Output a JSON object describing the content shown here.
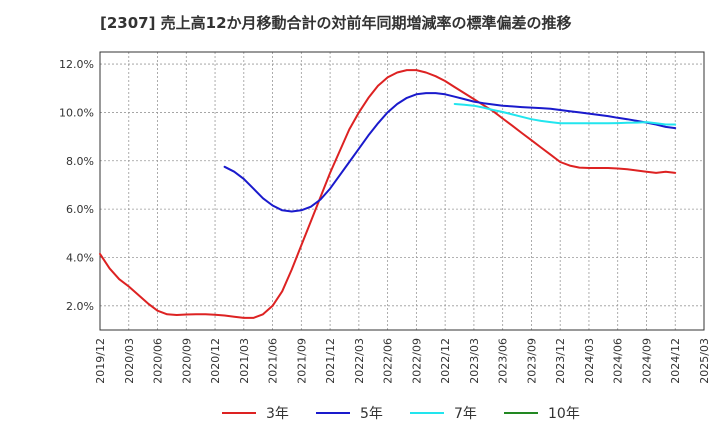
{
  "chart_data": {
    "type": "line",
    "title": "[2307]  売上高12か月移動合計の対前年同期増減率の標準偏差の推移",
    "xlabel": "",
    "ylabel": "",
    "x_ticks": [
      "2019/12",
      "2020/03",
      "2020/06",
      "2020/09",
      "2020/12",
      "2021/03",
      "2021/06",
      "2021/09",
      "2021/12",
      "2022/03",
      "2022/06",
      "2022/09",
      "2022/12",
      "2023/03",
      "2023/06",
      "2023/09",
      "2023/12",
      "2024/03",
      "2024/06",
      "2024/09",
      "2024/12",
      "2025/03"
    ],
    "y_ticks": [
      "2.0%",
      "4.0%",
      "6.0%",
      "8.0%",
      "10.0%",
      "12.0%"
    ],
    "ylim": [
      1.0,
      12.5
    ],
    "grid": true,
    "legend_position": "bottom",
    "series": [
      {
        "name": "3年",
        "color": "#dd2222",
        "x": [
          "2019/12",
          "2020/01",
          "2020/02",
          "2020/03",
          "2020/04",
          "2020/05",
          "2020/06",
          "2020/07",
          "2020/08",
          "2020/09",
          "2020/10",
          "2020/11",
          "2020/12",
          "2021/01",
          "2021/02",
          "2021/03",
          "2021/04",
          "2021/05",
          "2021/06",
          "2021/07",
          "2021/08",
          "2021/09",
          "2021/10",
          "2021/11",
          "2021/12",
          "2022/01",
          "2022/02",
          "2022/03",
          "2022/04",
          "2022/05",
          "2022/06",
          "2022/07",
          "2022/08",
          "2022/09",
          "2022/10",
          "2022/11",
          "2022/12",
          "2023/01",
          "2023/02",
          "2023/03",
          "2023/04",
          "2023/05",
          "2023/06",
          "2023/07",
          "2023/08",
          "2023/09",
          "2023/10",
          "2023/11",
          "2023/12",
          "2024/01",
          "2024/02",
          "2024/03",
          "2024/04",
          "2024/05",
          "2024/06",
          "2024/07",
          "2024/08",
          "2024/09",
          "2024/10",
          "2024/11",
          "2024/12"
        ],
        "values": [
          4.15,
          3.55,
          3.1,
          2.8,
          2.45,
          2.1,
          1.8,
          1.65,
          1.62,
          1.64,
          1.65,
          1.65,
          1.63,
          1.6,
          1.55,
          1.5,
          1.5,
          1.65,
          2.0,
          2.6,
          3.5,
          4.5,
          5.5,
          6.5,
          7.5,
          8.4,
          9.3,
          10.0,
          10.6,
          11.1,
          11.45,
          11.65,
          11.75,
          11.75,
          11.65,
          11.5,
          11.3,
          11.05,
          10.8,
          10.55,
          10.3,
          10.05,
          9.75,
          9.45,
          9.15,
          8.85,
          8.55,
          8.25,
          7.95,
          7.8,
          7.72,
          7.7,
          7.7,
          7.7,
          7.68,
          7.65,
          7.6,
          7.55,
          7.5,
          7.55,
          7.5
        ]
      },
      {
        "name": "5年",
        "color": "#1a1acc",
        "x": [
          "2021/01",
          "2021/02",
          "2021/03",
          "2021/04",
          "2021/05",
          "2021/06",
          "2021/07",
          "2021/08",
          "2021/09",
          "2021/10",
          "2021/11",
          "2021/12",
          "2022/01",
          "2022/02",
          "2022/03",
          "2022/04",
          "2022/05",
          "2022/06",
          "2022/07",
          "2022/08",
          "2022/09",
          "2022/10",
          "2022/11",
          "2022/12",
          "2023/01",
          "2023/02",
          "2023/03",
          "2023/04",
          "2023/05",
          "2023/06",
          "2023/07",
          "2023/08",
          "2023/09",
          "2023/10",
          "2023/11",
          "2023/12",
          "2024/01",
          "2024/02",
          "2024/03",
          "2024/04",
          "2024/05",
          "2024/06",
          "2024/07",
          "2024/08",
          "2024/09",
          "2024/10",
          "2024/11",
          "2024/12"
        ],
        "values": [
          7.75,
          7.55,
          7.25,
          6.85,
          6.45,
          6.15,
          5.95,
          5.9,
          5.95,
          6.1,
          6.4,
          6.85,
          7.4,
          7.95,
          8.5,
          9.05,
          9.55,
          10.0,
          10.35,
          10.6,
          10.75,
          10.8,
          10.8,
          10.75,
          10.65,
          10.55,
          10.45,
          10.38,
          10.33,
          10.28,
          10.25,
          10.22,
          10.2,
          10.18,
          10.15,
          10.1,
          10.05,
          10.0,
          9.95,
          9.9,
          9.85,
          9.78,
          9.72,
          9.65,
          9.58,
          9.5,
          9.4,
          9.35
        ]
      },
      {
        "name": "7年",
        "color": "#22e5ee",
        "x": [
          "2023/01",
          "2023/02",
          "2023/03",
          "2023/04",
          "2023/05",
          "2023/06",
          "2023/07",
          "2023/08",
          "2023/09",
          "2023/10",
          "2023/11",
          "2023/12",
          "2024/01",
          "2024/02",
          "2024/03",
          "2024/04",
          "2024/05",
          "2024/06",
          "2024/07",
          "2024/08",
          "2024/09",
          "2024/10",
          "2024/11",
          "2024/12"
        ],
        "values": [
          10.35,
          10.32,
          10.28,
          10.2,
          10.1,
          10.02,
          9.92,
          9.82,
          9.72,
          9.65,
          9.6,
          9.55,
          9.55,
          9.55,
          9.55,
          9.55,
          9.55,
          9.56,
          9.57,
          9.58,
          9.6,
          9.55,
          9.5,
          9.5
        ]
      },
      {
        "name": "10年",
        "color": "#228822",
        "x": [],
        "values": []
      }
    ]
  }
}
